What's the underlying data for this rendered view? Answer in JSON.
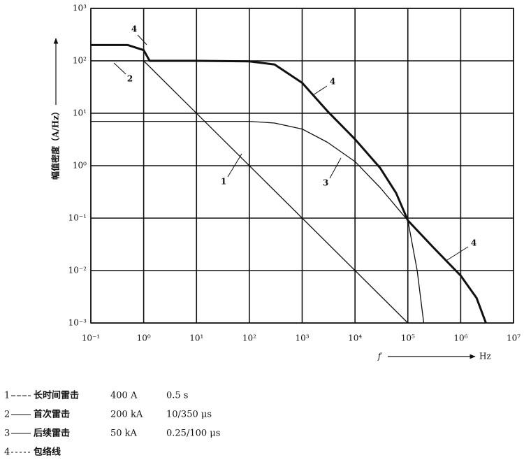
{
  "chart_data": {
    "type": "line",
    "ylabel": "幅值密度（A/Hz）",
    "xlabel": "f",
    "xunit": "Hz",
    "xlog": true,
    "ylog": true,
    "grid": true,
    "xlim": [
      0.1,
      10000000
    ],
    "ylim": [
      0.001,
      1000
    ],
    "xticks": [
      {
        "value": 0.1,
        "label": "10⁻¹"
      },
      {
        "value": 1,
        "label": "10⁰"
      },
      {
        "value": 10,
        "label": "10¹"
      },
      {
        "value": 100,
        "label": "10²"
      },
      {
        "value": 1000,
        "label": "10³"
      },
      {
        "value": 10000,
        "label": "10⁴"
      },
      {
        "value": 100000,
        "label": "10⁵"
      },
      {
        "value": 1000000,
        "label": "10⁶"
      },
      {
        "value": 10000000,
        "label": "10⁷"
      }
    ],
    "yticks": [
      {
        "value": 0.001,
        "label": "10⁻³"
      },
      {
        "value": 0.01,
        "label": "10⁻²"
      },
      {
        "value": 0.1,
        "label": "10⁻¹"
      },
      {
        "value": 1,
        "label": "10⁰"
      },
      {
        "value": 10,
        "label": "10¹"
      },
      {
        "value": 100,
        "label": "10²"
      },
      {
        "value": 1000,
        "label": "10³"
      }
    ],
    "series": [
      {
        "name": "1",
        "color": "#111111",
        "x": [
          1,
          100000
        ],
        "values": [
          100,
          0.001
        ]
      },
      {
        "name": "2",
        "color": "#111111",
        "x": [
          0.1,
          10,
          100,
          300,
          1000,
          3000,
          10000,
          30000,
          60000,
          100000,
          150000,
          200000
        ],
        "values": [
          100,
          100,
          98,
          85,
          38,
          11,
          3.2,
          0.9,
          0.3,
          0.09,
          0.01,
          0.001
        ]
      },
      {
        "name": "3",
        "color": "#111111",
        "x": [
          0.1,
          10,
          100,
          300,
          1000,
          3000,
          10000,
          30000,
          100000,
          300000,
          1000000,
          2000000,
          3000000
        ],
        "values": [
          7,
          7,
          7,
          6.5,
          5,
          2.8,
          1.2,
          0.38,
          0.09,
          0.028,
          0.008,
          0.003,
          0.001
        ]
      },
      {
        "name": "4",
        "color": "#111111",
        "x": [
          0.1,
          0.5,
          1,
          1.3,
          10,
          100,
          300,
          1000,
          3000,
          10000,
          30000,
          60000,
          100000,
          300000,
          1000000,
          2000000,
          3000000
        ],
        "values": [
          200,
          200,
          160,
          100,
          100,
          98,
          85,
          38,
          11,
          3.2,
          0.9,
          0.3,
          0.09,
          0.028,
          0.008,
          0.003,
          0.001
        ]
      }
    ],
    "legend_items": [
      {
        "number": "1",
        "name": "长时间雷击",
        "current": "400 A",
        "duration": "0.5 s"
      },
      {
        "number": "2",
        "name": "首次雷击",
        "current": "200 kA",
        "duration": "10/350 μs"
      },
      {
        "number": "3",
        "name": "后续雷击",
        "current": "50 kA",
        "duration": "0.25/100 μs"
      },
      {
        "number": "4",
        "name": "包络线"
      }
    ]
  }
}
